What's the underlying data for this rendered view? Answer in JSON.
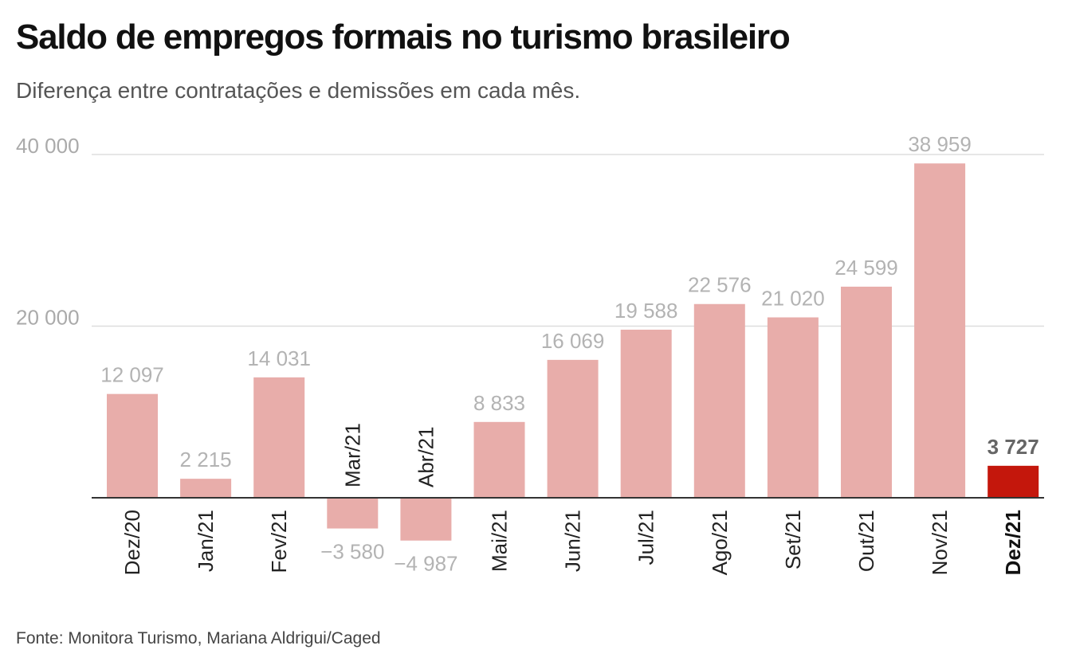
{
  "title": "Saldo de empregos formais no turismo brasileiro",
  "subtitle": "Diferença entre contratações e demissões em cada mês.",
  "source": "Fonte: Monitora Turismo, Mariana Aldrigui/Caged",
  "chart_data": {
    "type": "bar",
    "categories": [
      "Dez/20",
      "Jan/21",
      "Fev/21",
      "Mar/21",
      "Abr/21",
      "Mai/21",
      "Jun/21",
      "Jul/21",
      "Ago/21",
      "Set/21",
      "Out/21",
      "Nov/21",
      "Dez/21"
    ],
    "values": [
      12097,
      2215,
      14031,
      -3580,
      -4987,
      8833,
      16069,
      19588,
      22576,
      21020,
      24599,
      38959,
      3727
    ],
    "value_labels": [
      "12 097",
      "2 215",
      "14 031",
      "−3 580",
      "−4 987",
      "8 833",
      "16 069",
      "19 588",
      "22 576",
      "21 020",
      "24 599",
      "38 959",
      "3 727"
    ],
    "y_ticks": [
      20000,
      40000
    ],
    "y_tick_labels": [
      "20 000",
      "40 000"
    ],
    "ylim": [
      -5500,
      40000
    ],
    "highlight_index": 12,
    "colors": {
      "bar": "#e8adaa",
      "highlight": "#c4170c",
      "grid": "#dddddd",
      "axis": "#333333"
    },
    "grid": true,
    "legend": "none"
  }
}
